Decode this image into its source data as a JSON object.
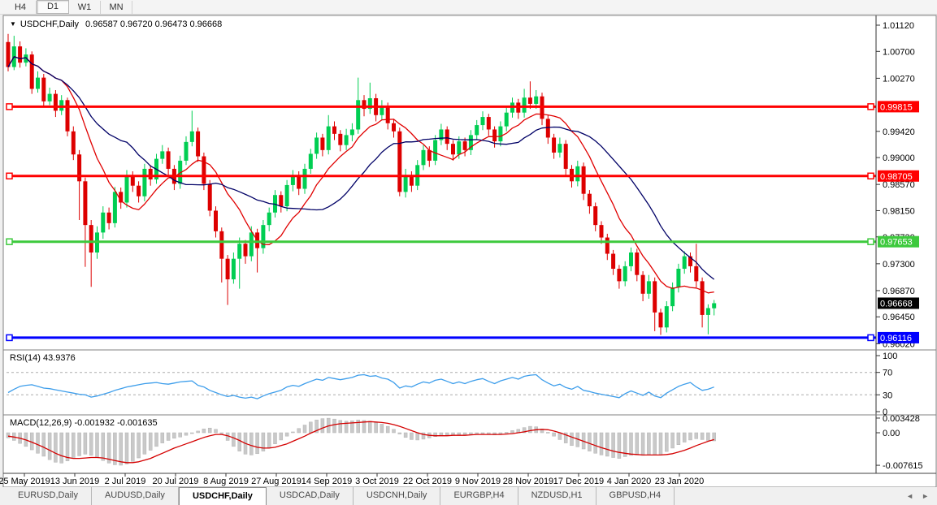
{
  "toolbar": {
    "buttons": [
      {
        "label": "H4",
        "active": false
      },
      {
        "label": "D1",
        "active": true
      },
      {
        "label": "W1",
        "active": false
      },
      {
        "label": "MN",
        "active": false
      }
    ]
  },
  "title": {
    "dropdown_icon": "▼",
    "symbol": "USDCHF,Daily",
    "ohlc": "0.96587 0.96720 0.96473 0.96668"
  },
  "indicator_labels": {
    "rsi": "RSI(14) 43.9376",
    "macd": "MACD(12,26,9) -0.001932 -0.001635"
  },
  "tabs": {
    "items": [
      "EURUSD,Daily",
      "AUDUSD,Daily",
      "USDCHF,Daily",
      "USDCAD,Daily",
      "USDCNH,Daily",
      "EURGBP,H4",
      "NZDUSD,H1",
      "GBPUSD,H4"
    ],
    "active": "USDCHF,Daily",
    "scroll_left_icon": "◄",
    "scroll_right_icon": "►"
  },
  "colors": {
    "bull": "#00CE52",
    "bear": "#DD0000",
    "ma_fast": "#E00000",
    "ma_slow": "#000066",
    "rsi": "#3E9EEB",
    "rsi_level": "#ABABAB",
    "macd_hist": "#C9C9C9",
    "macd_hist_edge": "#B3B3B3",
    "macd_signal": "#D40000",
    "level_red": "#FF0000",
    "level_green": "#3DC93D",
    "level_blue": "#0000FF",
    "current_label_bg": "#000000",
    "axis_text": "#000000",
    "pane_border": "#808080"
  },
  "chart_data": {
    "type": "candlestick",
    "symbol": "USDCHF",
    "timeframe": "Daily",
    "title": "USDCHF,Daily",
    "current_ohlc": {
      "open": 0.96587,
      "high": 0.9672,
      "low": 0.96473,
      "close": 0.96668
    },
    "price_axis": {
      "min": 0.9593,
      "max": 1.0125,
      "ticks": [
        1.0112,
        1.007,
        1.0027,
        0.9942,
        0.99,
        0.9857,
        0.9815,
        0.9773,
        0.973,
        0.9687,
        0.9645,
        0.9602
      ]
    },
    "levels": [
      {
        "value": 0.99815,
        "color": "#FF0000",
        "type": "resistance"
      },
      {
        "value": 0.98705,
        "color": "#FF0000",
        "type": "resistance"
      },
      {
        "value": 0.97653,
        "color": "#3DC93D",
        "type": "support"
      },
      {
        "value": 0.96116,
        "color": "#0000FF",
        "type": "support"
      }
    ],
    "current_price": 0.96668,
    "dates": [
      "25 May 2019",
      "13 Jun 2019",
      "2 Jul 2019",
      "20 Jul 2019",
      "8 Aug 2019",
      "27 Aug 2019",
      "14 Sep 2019",
      "3 Oct 2019",
      "22 Oct 2019",
      "9 Nov 2019",
      "28 Nov 2019",
      "17 Dec 2019",
      "4 Jan 2020",
      "23 Jan 2020"
    ],
    "candles": [
      [
        1.0085,
        1.0098,
        1.0038,
        1.0045
      ],
      [
        1.0045,
        1.0095,
        1.004,
        1.0078
      ],
      [
        1.0078,
        1.0086,
        1.0044,
        1.0052
      ],
      [
        1.0052,
        1.0075,
        1.0046,
        1.0065
      ],
      [
        1.0065,
        1.007,
        1.0002,
        1.001
      ],
      [
        1.001,
        1.0038,
        1.0004,
        1.0028
      ],
      [
        1.0028,
        1.0034,
        0.9982,
        0.999
      ],
      [
        0.999,
        1.0012,
        0.9984,
        1.0002
      ],
      [
        1.0002,
        1.0008,
        0.9965,
        0.9975
      ],
      [
        0.9975,
        1.0,
        0.9968,
        0.9992
      ],
      [
        0.9992,
        0.9996,
        0.9934,
        0.9942
      ],
      [
        0.9942,
        0.995,
        0.9896,
        0.9905
      ],
      [
        0.9905,
        0.9912,
        0.98,
        0.9862
      ],
      [
        0.9862,
        0.9868,
        0.9725,
        0.9792
      ],
      [
        0.9792,
        0.98,
        0.9693,
        0.9748
      ],
      [
        0.9748,
        0.979,
        0.9738,
        0.978
      ],
      [
        0.978,
        0.9822,
        0.977,
        0.9812
      ],
      [
        0.9812,
        0.982,
        0.9785,
        0.9795
      ],
      [
        0.9795,
        0.9853,
        0.9788,
        0.9845
      ],
      [
        0.9845,
        0.9852,
        0.9818,
        0.9828
      ],
      [
        0.9828,
        0.988,
        0.982,
        0.9872
      ],
      [
        0.9872,
        0.9878,
        0.9845,
        0.9855
      ],
      [
        0.9855,
        0.9862,
        0.9828,
        0.9838
      ],
      [
        0.9838,
        0.989,
        0.983,
        0.9882
      ],
      [
        0.9882,
        0.9888,
        0.9855,
        0.9865
      ],
      [
        0.9865,
        0.9906,
        0.9858,
        0.9898
      ],
      [
        0.9898,
        0.992,
        0.989,
        0.991
      ],
      [
        0.991,
        0.9916,
        0.9872,
        0.9882
      ],
      [
        0.9882,
        0.9888,
        0.9848,
        0.9858
      ],
      [
        0.9858,
        0.9903,
        0.985,
        0.9895
      ],
      [
        0.9895,
        0.9934,
        0.9888,
        0.9925
      ],
      [
        0.9925,
        0.9975,
        0.9918,
        0.9942
      ],
      [
        0.9942,
        0.9948,
        0.9893,
        0.9902
      ],
      [
        0.9902,
        0.9908,
        0.9848,
        0.9858
      ],
      [
        0.9858,
        0.9864,
        0.9806,
        0.9815
      ],
      [
        0.9815,
        0.9822,
        0.9772,
        0.9782
      ],
      [
        0.9782,
        0.9788,
        0.97,
        0.9738
      ],
      [
        0.9738,
        0.9744,
        0.9664,
        0.9705
      ],
      [
        0.9705,
        0.9748,
        0.9698,
        0.9738
      ],
      [
        0.9738,
        0.9772,
        0.969,
        0.9762
      ],
      [
        0.9762,
        0.9768,
        0.973,
        0.9742
      ],
      [
        0.9742,
        0.979,
        0.9734,
        0.978
      ],
      [
        0.978,
        0.9786,
        0.9716,
        0.9755
      ],
      [
        0.9755,
        0.98,
        0.9746,
        0.9792
      ],
      [
        0.9792,
        0.982,
        0.9782,
        0.9812
      ],
      [
        0.9812,
        0.9848,
        0.9804,
        0.984
      ],
      [
        0.984,
        0.9846,
        0.9812,
        0.9822
      ],
      [
        0.9822,
        0.9864,
        0.9814,
        0.9856
      ],
      [
        0.9856,
        0.988,
        0.9846,
        0.9872
      ],
      [
        0.9872,
        0.9878,
        0.984,
        0.985
      ],
      [
        0.985,
        0.989,
        0.9842,
        0.9882
      ],
      [
        0.9882,
        0.9914,
        0.9874,
        0.9906
      ],
      [
        0.9906,
        0.994,
        0.9898,
        0.9932
      ],
      [
        0.9932,
        0.9938,
        0.9902,
        0.9912
      ],
      [
        0.9912,
        0.9968,
        0.9905,
        0.995
      ],
      [
        0.995,
        0.9958,
        0.9928,
        0.9938
      ],
      [
        0.9938,
        0.9944,
        0.991,
        0.992
      ],
      [
        0.992,
        0.9946,
        0.9912,
        0.9936
      ],
      [
        0.9936,
        0.9955,
        0.9926,
        0.9945
      ],
      [
        0.9945,
        1.0028,
        0.9938,
        0.9992
      ],
      [
        0.9992,
        1.0,
        0.9966,
        0.9978
      ],
      [
        0.9978,
        1.002,
        0.997,
        0.9995
      ],
      [
        0.9995,
        1.0002,
        0.9958,
        0.9968
      ],
      [
        0.9968,
        0.9992,
        0.996,
        0.9982
      ],
      [
        0.9982,
        0.9988,
        0.9945,
        0.9955
      ],
      [
        0.9955,
        0.9962,
        0.9932,
        0.9942
      ],
      [
        0.9942,
        0.9948,
        0.9838,
        0.9845
      ],
      [
        0.9845,
        0.9882,
        0.9836,
        0.9872
      ],
      [
        0.9872,
        0.9878,
        0.9845,
        0.9855
      ],
      [
        0.9855,
        0.9896,
        0.9848,
        0.9888
      ],
      [
        0.9888,
        0.992,
        0.988,
        0.9912
      ],
      [
        0.9912,
        0.9918,
        0.9885,
        0.9895
      ],
      [
        0.9895,
        0.9936,
        0.9888,
        0.9928
      ],
      [
        0.9928,
        0.9954,
        0.992,
        0.9945
      ],
      [
        0.9945,
        0.995,
        0.9912,
        0.9922
      ],
      [
        0.9922,
        0.9928,
        0.9895,
        0.9905
      ],
      [
        0.9905,
        0.9934,
        0.9898,
        0.9926
      ],
      [
        0.9926,
        0.9932,
        0.9902,
        0.9912
      ],
      [
        0.9912,
        0.9944,
        0.9904,
        0.9936
      ],
      [
        0.9936,
        0.996,
        0.9928,
        0.9952
      ],
      [
        0.9952,
        0.9974,
        0.9944,
        0.9965
      ],
      [
        0.9965,
        0.997,
        0.9935,
        0.9945
      ],
      [
        0.9945,
        0.995,
        0.9916,
        0.9926
      ],
      [
        0.9926,
        0.9958,
        0.9918,
        0.995
      ],
      [
        0.995,
        0.998,
        0.9942,
        0.9972
      ],
      [
        0.9972,
        0.9996,
        0.9964,
        0.9988
      ],
      [
        0.9988,
        0.9994,
        0.9962,
        0.9972
      ],
      [
        0.9972,
        1.001,
        0.9964,
        0.9996
      ],
      [
        0.9996,
        1.0022,
        0.9978,
        0.9986
      ],
      [
        0.9986,
        1.0008,
        0.9978,
        0.9998
      ],
      [
        0.9998,
        1.0004,
        0.9952,
        0.9962
      ],
      [
        0.9962,
        0.9968,
        0.9922,
        0.9932
      ],
      [
        0.9932,
        0.9938,
        0.9898,
        0.9908
      ],
      [
        0.9908,
        0.9932,
        0.99,
        0.9922
      ],
      [
        0.9922,
        0.9928,
        0.9872,
        0.9882
      ],
      [
        0.9882,
        0.9888,
        0.9852,
        0.9862
      ],
      [
        0.9862,
        0.9895,
        0.9854,
        0.9886
      ],
      [
        0.9886,
        0.9892,
        0.9832,
        0.9842
      ],
      [
        0.9842,
        0.9848,
        0.981,
        0.9822
      ],
      [
        0.9822,
        0.9828,
        0.9782,
        0.9792
      ],
      [
        0.9792,
        0.9798,
        0.9762,
        0.9772
      ],
      [
        0.9772,
        0.9778,
        0.9736,
        0.9746
      ],
      [
        0.9746,
        0.9752,
        0.9712,
        0.9722
      ],
      [
        0.9722,
        0.9728,
        0.969,
        0.9702
      ],
      [
        0.9702,
        0.9734,
        0.9694,
        0.9726
      ],
      [
        0.9726,
        0.9756,
        0.9718,
        0.9748
      ],
      [
        0.9748,
        0.9754,
        0.9702,
        0.9712
      ],
      [
        0.9712,
        0.9718,
        0.967,
        0.9682
      ],
      [
        0.9682,
        0.9712,
        0.9674,
        0.9702
      ],
      [
        0.9702,
        0.9708,
        0.9622,
        0.9652
      ],
      [
        0.9652,
        0.9658,
        0.9616,
        0.9628
      ],
      [
        0.9628,
        0.967,
        0.962,
        0.9662
      ],
      [
        0.9662,
        0.97,
        0.9654,
        0.9692
      ],
      [
        0.9692,
        0.973,
        0.9684,
        0.9722
      ],
      [
        0.9722,
        0.975,
        0.9714,
        0.9742
      ],
      [
        0.9742,
        0.9748,
        0.9716,
        0.9726
      ],
      [
        0.9726,
        0.9762,
        0.9692,
        0.9702
      ],
      [
        0.9702,
        0.9708,
        0.9628,
        0.9648
      ],
      [
        0.9648,
        0.9665,
        0.9617,
        0.9659
      ],
      [
        0.96587,
        0.9672,
        0.96473,
        0.96668
      ]
    ],
    "indicators": {
      "ma_fast_period": 10,
      "ma_slow_period": 21,
      "rsi": {
        "period": 14,
        "current": 43.9376,
        "levels": [
          30,
          70
        ],
        "scale": [
          0,
          30,
          70,
          100
        ],
        "values": [
          34,
          40,
          45,
          47,
          48,
          45,
          42,
          41,
          39,
          37,
          35,
          33,
          31,
          30,
          26,
          28,
          31,
          34,
          38,
          41,
          44,
          46,
          48,
          50,
          51,
          52,
          50,
          49,
          51,
          53,
          54,
          55,
          47,
          44,
          38,
          34,
          30,
          27,
          29,
          26,
          24,
          26,
          23,
          28,
          32,
          35,
          38,
          44,
          47,
          45,
          50,
          54,
          58,
          56,
          61,
          59,
          57,
          59,
          61,
          65,
          66,
          63,
          64,
          60,
          58,
          52,
          42,
          46,
          44,
          49,
          53,
          51,
          56,
          58,
          54,
          50,
          53,
          50,
          54,
          57,
          59,
          54,
          50,
          55,
          58,
          61,
          58,
          63,
          65,
          66,
          57,
          51,
          46,
          49,
          43,
          40,
          45,
          38,
          36,
          33,
          31,
          29,
          27,
          25,
          32,
          37,
          33,
          29,
          35,
          28,
          25,
          33,
          39,
          45,
          49,
          52,
          44,
          38,
          40,
          43.9
        ]
      },
      "macd": {
        "params": "12,26,9",
        "main_current": -0.001932,
        "signal_current": -0.001635,
        "scale_max": 0.003428,
        "scale_min": -0.007615,
        "hist": [
          -0.0012,
          -0.0018,
          -0.0025,
          -0.0032,
          -0.004,
          -0.0048,
          -0.0055,
          -0.0063,
          -0.0069,
          -0.0071,
          -0.0066,
          -0.006,
          -0.0054,
          -0.005,
          -0.0053,
          -0.0058,
          -0.0065,
          -0.0071,
          -0.0075,
          -0.0076,
          -0.0073,
          -0.0067,
          -0.0059,
          -0.005,
          -0.0041,
          -0.0032,
          -0.0024,
          -0.0018,
          -0.0013,
          -0.001,
          -0.0006,
          -0.0002,
          0.0004,
          0.0009,
          0.0011,
          0.0008,
          -0.0002,
          -0.0018,
          -0.0032,
          -0.0043,
          -0.005,
          -0.0052,
          -0.0049,
          -0.0043,
          -0.0035,
          -0.0026,
          -0.0017,
          -0.0008,
          0.0002,
          0.001,
          0.0018,
          0.0025,
          0.003,
          0.0033,
          0.0034,
          0.0032,
          0.0029,
          0.0027,
          0.0028,
          0.003,
          0.0029,
          0.0027,
          0.0024,
          0.002,
          0.0015,
          0.0008,
          -0.0003,
          -0.0011,
          -0.0016,
          -0.0017,
          -0.0015,
          -0.0012,
          -0.0009,
          -0.0006,
          -0.0005,
          -0.0006,
          -0.0005,
          -0.0004,
          -0.0003,
          -0.0002,
          -0.0002,
          -0.0004,
          -0.0005,
          -0.0003,
          0.0001,
          0.0005,
          0.0008,
          0.0012,
          0.0015,
          0.0014,
          0.0009,
          0.0001,
          -0.0008,
          -0.0016,
          -0.0024,
          -0.003,
          -0.0033,
          -0.0038,
          -0.0043,
          -0.0048,
          -0.0052,
          -0.0055,
          -0.0058,
          -0.006,
          -0.0056,
          -0.0053,
          -0.0052,
          -0.0053,
          -0.0051,
          -0.0052,
          -0.005,
          -0.0044,
          -0.0036,
          -0.0028,
          -0.0022,
          -0.0017,
          -0.0014,
          -0.0016,
          -0.0018,
          -0.0019
        ],
        "signal": [
          -0.0008,
          -0.001,
          -0.0013,
          -0.0017,
          -0.0022,
          -0.0028,
          -0.0034,
          -0.0041,
          -0.0048,
          -0.0054,
          -0.0058,
          -0.006,
          -0.006,
          -0.0059,
          -0.0058,
          -0.0058,
          -0.0059,
          -0.0062,
          -0.0065,
          -0.0068,
          -0.007,
          -0.007,
          -0.0068,
          -0.0064,
          -0.006,
          -0.0054,
          -0.0048,
          -0.0042,
          -0.0036,
          -0.0031,
          -0.0026,
          -0.0021,
          -0.0016,
          -0.0011,
          -0.0007,
          -0.0004,
          -0.0004,
          -0.0007,
          -0.0012,
          -0.0018,
          -0.0025,
          -0.003,
          -0.0034,
          -0.0036,
          -0.0036,
          -0.0034,
          -0.003,
          -0.0026,
          -0.002,
          -0.0014,
          -0.0008,
          -0.0001,
          0.0005,
          0.0011,
          0.0016,
          0.0019,
          0.0021,
          0.0022,
          0.0023,
          0.0024,
          0.0025,
          0.0026,
          0.0025,
          0.0024,
          0.0022,
          0.0019,
          0.0015,
          0.001,
          0.0005,
          0.0,
          -0.0004,
          -0.0006,
          -0.0007,
          -0.0007,
          -0.0007,
          -0.0006,
          -0.0006,
          -0.0006,
          -0.0005,
          -0.0004,
          -0.0004,
          -0.0004,
          -0.0004,
          -0.0004,
          -0.0003,
          -0.0002,
          0.0,
          0.0002,
          0.0005,
          0.0007,
          0.0008,
          0.0007,
          0.0004,
          0.0,
          -0.0005,
          -0.001,
          -0.0015,
          -0.002,
          -0.0025,
          -0.003,
          -0.0035,
          -0.0039,
          -0.0043,
          -0.0046,
          -0.0048,
          -0.005,
          -0.0051,
          -0.0052,
          -0.0052,
          -0.0052,
          -0.0052,
          -0.0051,
          -0.0049,
          -0.0045,
          -0.0041,
          -0.0036,
          -0.003,
          -0.0025,
          -0.002,
          -0.0016
        ]
      }
    }
  }
}
